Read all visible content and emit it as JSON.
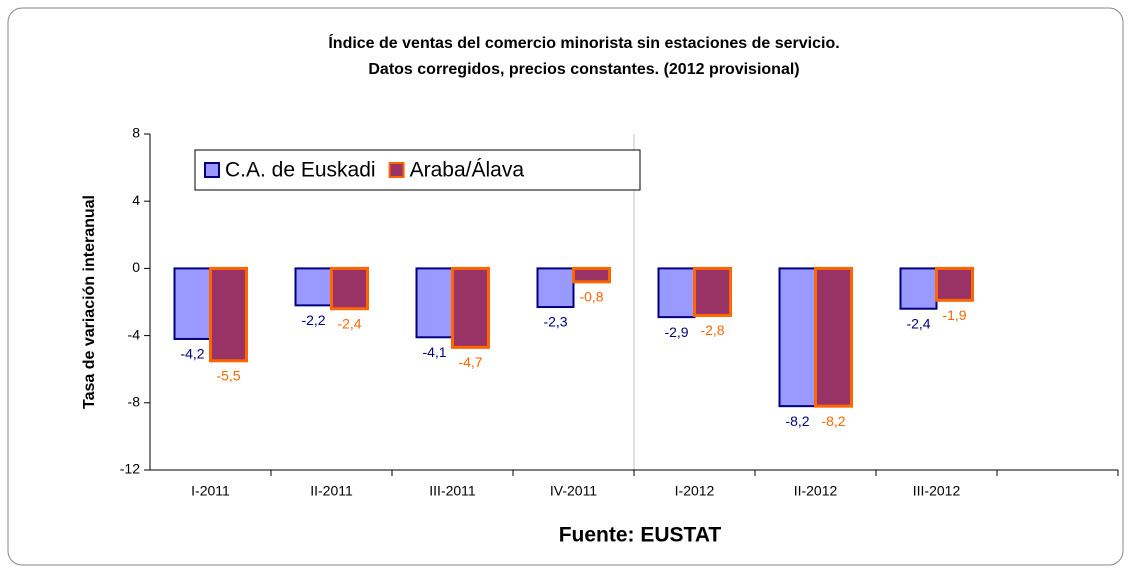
{
  "chart_data": {
    "type": "bar",
    "title": [
      "Índice de ventas del comercio minorista sin estaciones de servicio.",
      "Datos corregidos, precios constantes. (2012 provisional)"
    ],
    "ylabel": "Tasa de variación interanual",
    "annotation": "Fuente: EUSTAT",
    "categories": [
      "I-2011",
      "II-2011",
      "III-2011",
      "IV-2011",
      "I-2012",
      "II-2012",
      "III-2012",
      null
    ],
    "series": [
      {
        "name": "C.A. de Euskadi",
        "color": "#9999ff",
        "edge": "#000080",
        "label_color": "#000080",
        "values": [
          -4.2,
          -2.2,
          -4.1,
          -2.3,
          -2.9,
          -8.2,
          -2.4,
          null
        ],
        "value_labels": [
          "-4,2",
          "-2,2",
          "-4,1",
          "-2,3",
          "-2,9",
          "-8,2",
          "-2,4",
          null
        ]
      },
      {
        "name": "Araba/Álava",
        "color": "#993366",
        "edge": "#ff6600",
        "label_color": "#ff6600",
        "values": [
          -5.5,
          -2.4,
          -4.7,
          -0.8,
          -2.8,
          -8.2,
          -1.9,
          null
        ],
        "value_labels": [
          "-5,5",
          "-2,4",
          "-4,7",
          "-0,8",
          "-2,8",
          "-8,2",
          "-1,9",
          null
        ]
      }
    ],
    "ylim": [
      -12,
      8
    ],
    "yticks": [
      -12,
      -8,
      -4,
      0,
      4,
      8
    ],
    "legend": "upper left"
  }
}
